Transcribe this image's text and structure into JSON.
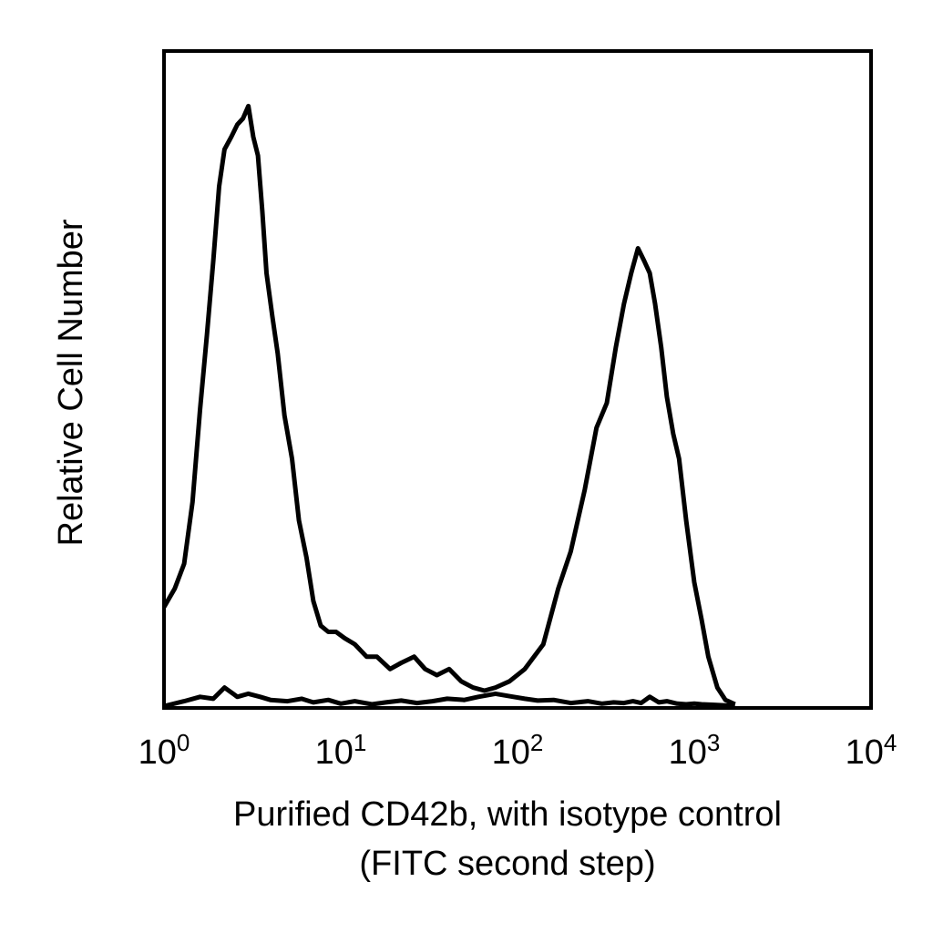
{
  "chart_data": {
    "type": "line",
    "title": "",
    "xlabel_lines": [
      "Purified CD42b, with isotype control",
      "(FITC second step)"
    ],
    "ylabel": "Relative Cell Number",
    "x_scale": "log",
    "xlim": [
      1,
      10000
    ],
    "ylim": [
      0,
      100
    ],
    "grid": false,
    "legend": "none",
    "x_ticks": [
      {
        "base": "10",
        "exp": "0",
        "value": 1
      },
      {
        "base": "10",
        "exp": "1",
        "value": 10
      },
      {
        "base": "10",
        "exp": "2",
        "value": 100
      },
      {
        "base": "10",
        "exp": "3",
        "value": 1000
      },
      {
        "base": "10",
        "exp": "4",
        "value": 10000
      }
    ],
    "series": [
      {
        "stroke": "#000000",
        "x": [
          1.0,
          1.15,
          1.3,
          1.45,
          1.6,
          1.75,
          1.9,
          2.05,
          2.2,
          2.4,
          2.6,
          2.8,
          3.0,
          3.2,
          3.4,
          3.6,
          3.8,
          4.1,
          4.4,
          4.8,
          5.3,
          5.8,
          6.4,
          7.0,
          7.7,
          8.5,
          9.4,
          10.5,
          12,
          14,
          16,
          19,
          22,
          26,
          30,
          35,
          41,
          48,
          56,
          65,
          75,
          90,
          110,
          140,
          170,
          200,
          240,
          280,
          320,
          360,
          400,
          440,
          480,
          520,
          560,
          600,
          650,
          700,
          760,
          820,
          900,
          1000,
          1100,
          1200,
          1350,
          1500,
          1700
        ],
        "y": [
          16,
          19,
          23,
          33,
          48,
          60,
          72,
          84,
          90,
          92,
          94,
          95,
          97,
          92,
          89,
          80,
          70,
          63,
          57,
          47,
          40,
          30,
          24,
          17,
          13,
          12,
          12,
          11,
          10,
          8,
          8,
          6,
          7,
          8,
          6,
          5,
          6,
          4,
          3,
          2.5,
          3,
          4,
          6,
          10,
          19,
          25,
          35,
          45,
          49,
          58,
          65,
          70,
          74,
          72,
          70,
          65,
          58,
          50,
          44,
          40,
          30,
          20,
          14,
          8,
          3,
          1,
          0.3
        ]
      },
      {
        "stroke": "#000000",
        "x": [
          1.0,
          1.3,
          1.6,
          1.9,
          2.2,
          2.6,
          3.0,
          3.5,
          4.0,
          5.0,
          6.0,
          7.0,
          8.5,
          10,
          12,
          15,
          18,
          22,
          27,
          33,
          40,
          50,
          60,
          75,
          90,
          110,
          130,
          160,
          200,
          250,
          300,
          350,
          400,
          450,
          500,
          560,
          630,
          700,
          800,
          900,
          1000,
          1100,
          1300,
          1500,
          1700
        ],
        "y": [
          0,
          0.8,
          1.5,
          1.2,
          3,
          1.5,
          2,
          1.5,
          1,
          0.8,
          1.2,
          0.6,
          1,
          0.4,
          0.8,
          0.3,
          0.6,
          0.9,
          0.5,
          0.8,
          1.2,
          1,
          1.5,
          2,
          1.6,
          1.2,
          0.9,
          1,
          0.5,
          0.8,
          0.4,
          0.6,
          0.5,
          0.8,
          0.5,
          1.5,
          0.6,
          0.8,
          0.4,
          0.3,
          0.4,
          0.3,
          0.2,
          0.1,
          0
        ]
      }
    ]
  }
}
